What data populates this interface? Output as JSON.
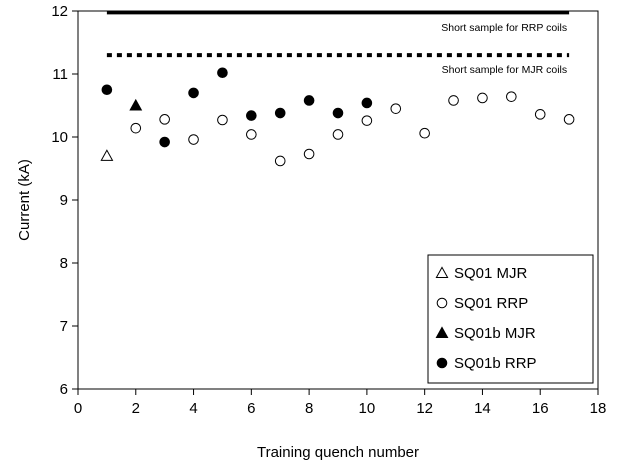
{
  "chart_data": {
    "type": "scatter",
    "title": "",
    "xlabel": "Training quench number",
    "ylabel": "Current (kA)",
    "xlim": [
      0,
      18
    ],
    "ylim": [
      6,
      12
    ],
    "x_ticks": [
      0,
      2,
      4,
      6,
      8,
      10,
      12,
      14,
      16,
      18
    ],
    "y_ticks": [
      6,
      7,
      8,
      9,
      10,
      11,
      12
    ],
    "grid": false,
    "legend_position": "bottom-right",
    "reference_lines": [
      {
        "name": "Short sample for RRP coils",
        "y": 11.97,
        "style": "solid",
        "x_range": [
          1,
          17
        ]
      },
      {
        "name": "Short sample for MJR coils",
        "y": 11.3,
        "style": "dashed",
        "x_range": [
          1,
          17
        ]
      }
    ],
    "series": [
      {
        "name": "SQ01 MJR",
        "marker": "open-triangle",
        "points": [
          [
            1,
            9.7
          ]
        ]
      },
      {
        "name": "SQ01 RRP",
        "marker": "open-circle",
        "points": [
          [
            2,
            10.14
          ],
          [
            3,
            10.28
          ],
          [
            4,
            9.96
          ],
          [
            5,
            10.27
          ],
          [
            6,
            10.04
          ],
          [
            7,
            9.62
          ],
          [
            8,
            9.73
          ],
          [
            9,
            10.04
          ],
          [
            10,
            10.26
          ],
          [
            11,
            10.45
          ],
          [
            12,
            10.06
          ],
          [
            13,
            10.58
          ],
          [
            14,
            10.62
          ],
          [
            15,
            10.64
          ],
          [
            16,
            10.36
          ],
          [
            17,
            10.28
          ]
        ]
      },
      {
        "name": "SQ01b MJR",
        "marker": "filled-triangle",
        "points": [
          [
            2,
            10.5
          ]
        ]
      },
      {
        "name": "SQ01b RRP",
        "marker": "filled-circle",
        "points": [
          [
            1,
            10.75
          ],
          [
            3,
            9.92
          ],
          [
            4,
            10.7
          ],
          [
            5,
            11.02
          ],
          [
            6,
            10.34
          ],
          [
            7,
            10.38
          ],
          [
            8,
            10.58
          ],
          [
            9,
            10.38
          ],
          [
            10,
            10.54
          ]
        ]
      }
    ]
  }
}
